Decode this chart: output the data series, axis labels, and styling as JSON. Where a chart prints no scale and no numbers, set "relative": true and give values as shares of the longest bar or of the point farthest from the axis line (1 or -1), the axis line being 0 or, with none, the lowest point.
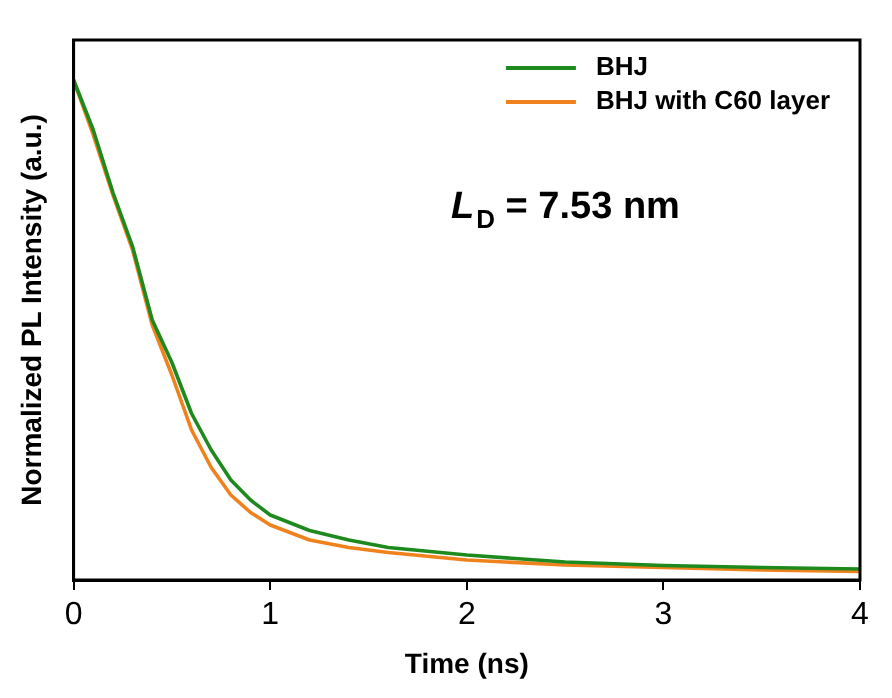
{
  "chart_data": {
    "type": "line",
    "xlabel": "Time (ns)",
    "ylabel": "Normalized PL Intensity (a.u.)",
    "relative": true,
    "x": [
      0,
      0.1,
      0.2,
      0.3,
      0.4,
      0.5,
      0.6,
      0.7,
      0.8,
      0.9,
      1.0,
      1.2,
      1.4,
      1.6,
      2.0,
      2.5,
      3.0,
      3.5,
      4.0
    ],
    "xlim": [
      0,
      4
    ],
    "xticks": [
      0,
      1,
      2,
      3,
      4
    ],
    "series": [
      {
        "name": "BHJ",
        "color": "#1e8a1e",
        "values": [
          1,
          0.9,
          0.775,
          0.667,
          0.52,
          0.435,
          0.333,
          0.26,
          0.2,
          0.16,
          0.13,
          0.099,
          0.08,
          0.065,
          0.05,
          0.036,
          0.029,
          0.025,
          0.022
        ]
      },
      {
        "name": "BHJ with C60 layer",
        "color": "#f0821e",
        "values": [
          1,
          0.89,
          0.77,
          0.66,
          0.51,
          0.41,
          0.3,
          0.225,
          0.17,
          0.135,
          0.11,
          0.08,
          0.065,
          0.055,
          0.04,
          0.03,
          0.025,
          0.02,
          0.017
        ]
      }
    ],
    "annotations": [
      "L$_{D}$ = 7.53 nm"
    ],
    "legend": "top right",
    "grid": false,
    "marker": "none",
    "line_style": "solid"
  }
}
